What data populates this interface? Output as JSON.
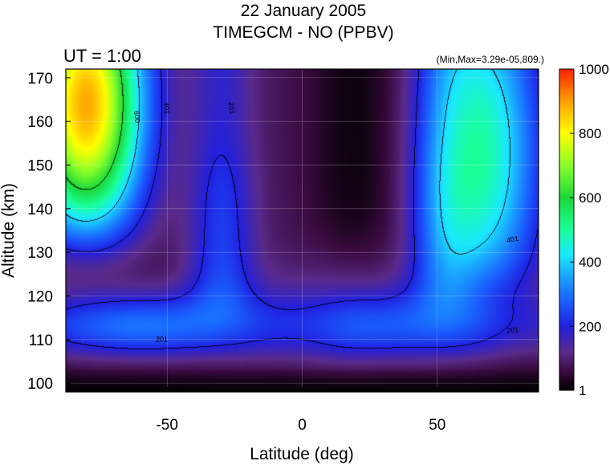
{
  "chart_data": {
    "type": "heatmap",
    "title_line1": "22 January 2005",
    "title_line2": "TIMEGCM - NO (PPBV)",
    "time_label": "UT =  1:00",
    "minmax_label": "(Min,Max=3.29e-05,809.)",
    "xlabel": "Latitude (deg)",
    "ylabel": "Altitude (km)",
    "xlim": [
      -87.5,
      87.5
    ],
    "ylim": [
      98,
      172
    ],
    "xticks": [
      {
        "value": -50,
        "label": "-50"
      },
      {
        "value": 0,
        "label": "0"
      },
      {
        "value": 50,
        "label": "50"
      }
    ],
    "yticks": [
      {
        "value": 100,
        "label": "100"
      },
      {
        "value": 110,
        "label": "110"
      },
      {
        "value": 120,
        "label": "120"
      },
      {
        "value": 130,
        "label": "130"
      },
      {
        "value": 140,
        "label": "140"
      },
      {
        "value": 150,
        "label": "150"
      },
      {
        "value": 160,
        "label": "160"
      },
      {
        "value": 170,
        "label": "170"
      }
    ],
    "colorbar": {
      "range": [
        1,
        1000
      ],
      "ticks": [
        {
          "value": 1,
          "label": "1"
        },
        {
          "value": 200,
          "label": "200"
        },
        {
          "value": 400,
          "label": "400"
        },
        {
          "value": 600,
          "label": "600"
        },
        {
          "value": 800,
          "label": "800"
        },
        {
          "value": 1000,
          "label": "1000"
        }
      ]
    },
    "contour_labels": [
      {
        "text": "600",
        "lat": -62,
        "alt": 161,
        "rot": 85
      },
      {
        "text": "401",
        "lat": -51,
        "alt": 163,
        "rot": 85
      },
      {
        "text": "201",
        "lat": -27,
        "alt": 163,
        "rot": 85
      },
      {
        "text": "401",
        "lat": 78,
        "alt": 132.4,
        "rot": -10
      },
      {
        "text": "201",
        "lat": 78,
        "alt": 111.6,
        "rot": -5
      },
      {
        "text": "201",
        "lat": -52,
        "alt": 109.5,
        "rot": 0
      }
    ]
  }
}
